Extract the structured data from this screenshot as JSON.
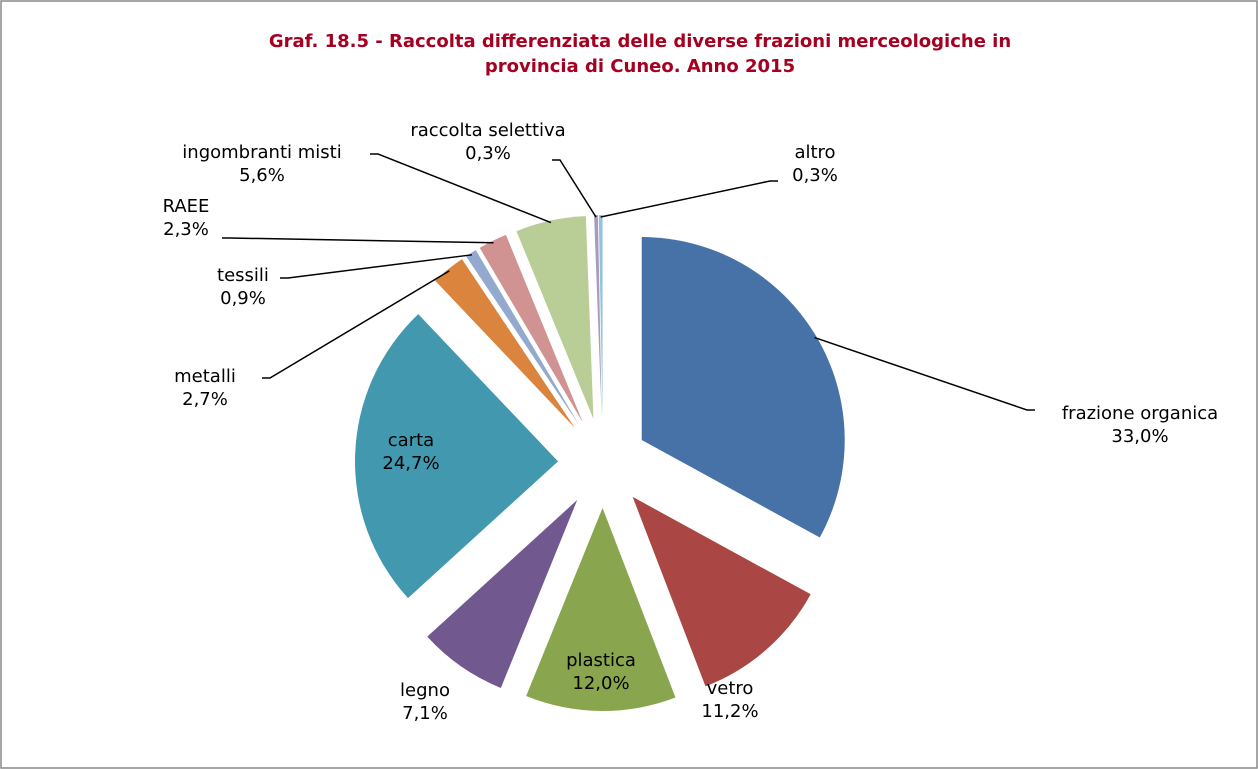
{
  "chart_data": {
    "type": "pie",
    "title": "Graf. 18.5 - Raccolta differenziata delle diverse frazioni merceologiche in provincia di Cuneo. Anno 2015",
    "categories": [
      "frazione organica",
      "vetro",
      "plastica",
      "legno",
      "carta",
      "metalli",
      "tessili",
      "RAEE",
      "ingombranti misti",
      "raccolta selettiva",
      "altro"
    ],
    "values": [
      33.0,
      11.2,
      12.0,
      7.1,
      24.7,
      2.7,
      0.9,
      2.3,
      5.6,
      0.3,
      0.3
    ],
    "value_labels": [
      "33,0%",
      "11,2%",
      "12,0%",
      "7,1%",
      "24,7%",
      "2,7%",
      "0,9%",
      "2,3%",
      "5,6%",
      "0,3%",
      "0,3%"
    ],
    "colors": [
      "#4672a8",
      "#aa4643",
      "#89a54e",
      "#71588f",
      "#4198af",
      "#db843d",
      "#93a9cf",
      "#d19392",
      "#b9cd96",
      "#a99bbd",
      "#92c5db"
    ]
  }
}
